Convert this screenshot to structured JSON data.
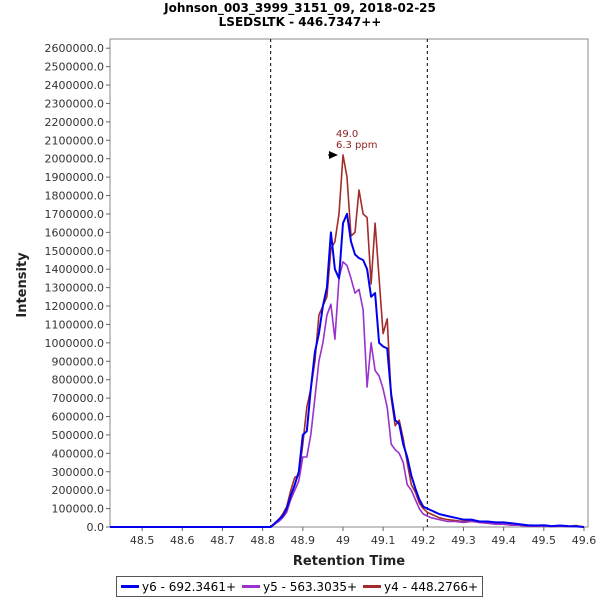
{
  "chart_data": {
    "type": "line",
    "title": "Johnson_003_3999_3151_09, 2018-02-25",
    "subtitle": "LSEDSLTK - 446.7347++",
    "xlabel": "Retention Time",
    "ylabel": "Intensity",
    "xlim": [
      48.42,
      49.61
    ],
    "ylim": [
      0,
      2650000
    ],
    "x_ticks": [
      48.5,
      48.6,
      48.7,
      48.8,
      48.9,
      49.0,
      49.1,
      49.2,
      49.3,
      49.4,
      49.5,
      49.6
    ],
    "x_tick_labels": [
      "48.5",
      "48.6",
      "48.7",
      "48.8",
      "48.9",
      "49",
      "49.1",
      "49.2",
      "49.3",
      "49.4",
      "49.5",
      "49.6"
    ],
    "y_ticks": [
      0,
      100000,
      200000,
      300000,
      400000,
      500000,
      600000,
      700000,
      800000,
      900000,
      1000000,
      1100000,
      1200000,
      1300000,
      1400000,
      1500000,
      1600000,
      1700000,
      1800000,
      1900000,
      2000000,
      2100000,
      2200000,
      2300000,
      2400000,
      2500000,
      2600000
    ],
    "y_tick_labels": [
      "0.0",
      "100000.0",
      "200000.0",
      "300000.0",
      "400000.0",
      "500000.0",
      "600000.0",
      "700000.0",
      "800000.0",
      "900000.0",
      "1000000.0",
      "1100000.0",
      "1200000.0",
      "1300000.0",
      "1400000.0",
      "1500000.0",
      "1600000.0",
      "1700000.0",
      "1800000.0",
      "1900000.0",
      "2000000.0",
      "2100000.0",
      "2200000.0",
      "2300000.0",
      "2400000.0",
      "2500000.0",
      "2600000.0"
    ],
    "integration_bounds": [
      48.82,
      49.21
    ],
    "annotation": {
      "x": 49.0,
      "y": 2020000,
      "label_line1": "49.0",
      "label_line2": "6.3 ppm",
      "color": "#8b2323"
    },
    "series": [
      {
        "name": "y6 - 692.3461+",
        "color": "#0000ee",
        "points": [
          [
            48.42,
            0
          ],
          [
            48.82,
            0
          ],
          [
            48.83,
            20000
          ],
          [
            48.84,
            40000
          ],
          [
            48.85,
            60000
          ],
          [
            48.86,
            100000
          ],
          [
            48.87,
            170000
          ],
          [
            48.88,
            230000
          ],
          [
            48.89,
            300000
          ],
          [
            48.9,
            500000
          ],
          [
            48.91,
            520000
          ],
          [
            48.92,
            750000
          ],
          [
            48.93,
            950000
          ],
          [
            48.94,
            1050000
          ],
          [
            48.95,
            1200000
          ],
          [
            48.96,
            1300000
          ],
          [
            48.97,
            1600000
          ],
          [
            48.98,
            1400000
          ],
          [
            48.99,
            1350000
          ],
          [
            49.0,
            1650000
          ],
          [
            49.01,
            1700000
          ],
          [
            49.02,
            1550000
          ],
          [
            49.03,
            1480000
          ],
          [
            49.04,
            1460000
          ],
          [
            49.05,
            1450000
          ],
          [
            49.06,
            1400000
          ],
          [
            49.07,
            1250000
          ],
          [
            49.08,
            1270000
          ],
          [
            49.09,
            1000000
          ],
          [
            49.1,
            980000
          ],
          [
            49.11,
            970000
          ],
          [
            49.12,
            720000
          ],
          [
            49.13,
            580000
          ],
          [
            49.14,
            560000
          ],
          [
            49.15,
            450000
          ],
          [
            49.16,
            380000
          ],
          [
            49.17,
            280000
          ],
          [
            49.18,
            210000
          ],
          [
            49.19,
            150000
          ],
          [
            49.2,
            110000
          ],
          [
            49.21,
            100000
          ],
          [
            49.22,
            90000
          ],
          [
            49.23,
            80000
          ],
          [
            49.24,
            70000
          ],
          [
            49.26,
            60000
          ],
          [
            49.28,
            50000
          ],
          [
            49.3,
            40000
          ],
          [
            49.32,
            40000
          ],
          [
            49.34,
            30000
          ],
          [
            49.36,
            30000
          ],
          [
            49.38,
            25000
          ],
          [
            49.4,
            25000
          ],
          [
            49.42,
            20000
          ],
          [
            49.44,
            15000
          ],
          [
            49.46,
            10000
          ],
          [
            49.48,
            8000
          ],
          [
            49.5,
            10000
          ],
          [
            49.52,
            5000
          ],
          [
            49.54,
            8000
          ],
          [
            49.56,
            5000
          ],
          [
            49.58,
            3000
          ],
          [
            49.6,
            0
          ]
        ]
      },
      {
        "name": "y5 - 563.3035+",
        "color": "#9932cc",
        "points": [
          [
            48.42,
            0
          ],
          [
            48.82,
            0
          ],
          [
            48.83,
            15000
          ],
          [
            48.84,
            30000
          ],
          [
            48.85,
            50000
          ],
          [
            48.86,
            80000
          ],
          [
            48.87,
            150000
          ],
          [
            48.88,
            200000
          ],
          [
            48.89,
            250000
          ],
          [
            48.9,
            380000
          ],
          [
            48.91,
            380000
          ],
          [
            48.92,
            500000
          ],
          [
            48.93,
            700000
          ],
          [
            48.94,
            900000
          ],
          [
            48.95,
            1000000
          ],
          [
            48.96,
            1150000
          ],
          [
            48.97,
            1210000
          ],
          [
            48.98,
            1020000
          ],
          [
            48.99,
            1350000
          ],
          [
            49.0,
            1440000
          ],
          [
            49.01,
            1420000
          ],
          [
            49.02,
            1350000
          ],
          [
            49.03,
            1270000
          ],
          [
            49.04,
            1290000
          ],
          [
            49.05,
            1180000
          ],
          [
            49.06,
            760000
          ],
          [
            49.07,
            1000000
          ],
          [
            49.08,
            850000
          ],
          [
            49.09,
            820000
          ],
          [
            49.1,
            750000
          ],
          [
            49.11,
            650000
          ],
          [
            49.12,
            450000
          ],
          [
            49.13,
            420000
          ],
          [
            49.14,
            400000
          ],
          [
            49.15,
            350000
          ],
          [
            49.16,
            230000
          ],
          [
            49.17,
            200000
          ],
          [
            49.18,
            150000
          ],
          [
            49.19,
            100000
          ],
          [
            49.2,
            70000
          ],
          [
            49.21,
            60000
          ],
          [
            49.22,
            50000
          ],
          [
            49.24,
            40000
          ],
          [
            49.26,
            30000
          ],
          [
            49.28,
            30000
          ],
          [
            49.3,
            25000
          ],
          [
            49.32,
            30000
          ],
          [
            49.34,
            25000
          ],
          [
            49.36,
            20000
          ],
          [
            49.38,
            15000
          ],
          [
            49.4,
            15000
          ],
          [
            49.42,
            10000
          ],
          [
            49.44,
            10000
          ],
          [
            49.46,
            5000
          ],
          [
            49.48,
            5000
          ],
          [
            49.5,
            5000
          ],
          [
            49.52,
            3000
          ],
          [
            49.54,
            5000
          ],
          [
            49.56,
            3000
          ],
          [
            49.58,
            2000
          ],
          [
            49.6,
            0
          ]
        ]
      },
      {
        "name": "y4 - 448.2766+",
        "color": "#a52a2a",
        "points": [
          [
            48.42,
            0
          ],
          [
            48.82,
            0
          ],
          [
            48.83,
            20000
          ],
          [
            48.84,
            40000
          ],
          [
            48.85,
            70000
          ],
          [
            48.86,
            110000
          ],
          [
            48.87,
            200000
          ],
          [
            48.88,
            270000
          ],
          [
            48.89,
            280000
          ],
          [
            48.9,
            450000
          ],
          [
            48.91,
            650000
          ],
          [
            48.92,
            750000
          ],
          [
            48.93,
            900000
          ],
          [
            48.94,
            1150000
          ],
          [
            48.95,
            1200000
          ],
          [
            48.96,
            1250000
          ],
          [
            48.97,
            1510000
          ],
          [
            48.98,
            1550000
          ],
          [
            48.99,
            1700000
          ],
          [
            49.0,
            2020000
          ],
          [
            49.01,
            1900000
          ],
          [
            49.02,
            1580000
          ],
          [
            49.03,
            1600000
          ],
          [
            49.04,
            1830000
          ],
          [
            49.05,
            1700000
          ],
          [
            49.06,
            1680000
          ],
          [
            49.07,
            1320000
          ],
          [
            49.08,
            1650000
          ],
          [
            49.09,
            1350000
          ],
          [
            49.1,
            1050000
          ],
          [
            49.11,
            1130000
          ],
          [
            49.12,
            700000
          ],
          [
            49.13,
            550000
          ],
          [
            49.14,
            580000
          ],
          [
            49.15,
            480000
          ],
          [
            49.16,
            350000
          ],
          [
            49.17,
            230000
          ],
          [
            49.18,
            190000
          ],
          [
            49.19,
            130000
          ],
          [
            49.2,
            100000
          ],
          [
            49.21,
            80000
          ],
          [
            49.22,
            70000
          ],
          [
            49.24,
            50000
          ],
          [
            49.26,
            40000
          ],
          [
            49.28,
            35000
          ],
          [
            49.3,
            30000
          ],
          [
            49.32,
            35000
          ],
          [
            49.34,
            25000
          ],
          [
            49.36,
            25000
          ],
          [
            49.38,
            20000
          ],
          [
            49.4,
            15000
          ],
          [
            49.42,
            10000
          ],
          [
            49.44,
            10000
          ],
          [
            49.46,
            5000
          ],
          [
            49.48,
            5000
          ],
          [
            49.5,
            8000
          ],
          [
            49.52,
            3000
          ],
          [
            49.54,
            5000
          ],
          [
            49.56,
            3000
          ],
          [
            49.58,
            8000
          ],
          [
            49.6,
            0
          ]
        ]
      }
    ]
  }
}
